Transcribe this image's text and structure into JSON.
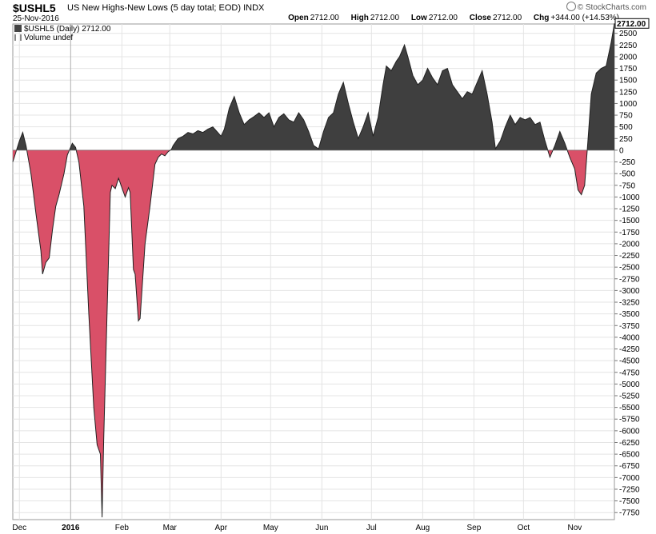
{
  "header": {
    "symbol": "$USHL5",
    "description": "US New Highs-New Lows (5 day total; EOD)",
    "exchange": "INDX",
    "date": "25-Nov-2016",
    "watermark": "© StockCharts.com",
    "open_label": "Open",
    "open_value": "2712.00",
    "high_label": "High",
    "high_value": "2712.00",
    "low_label": "Low",
    "low_value": "2712.00",
    "close_label": "Close",
    "close_value": "2712.00",
    "chg_label": "Chg",
    "chg_value": "+344.00 (+14.53%)"
  },
  "legend": {
    "series_label": "$USHL5 (Daily) 2712.00",
    "volume_label": "Volume undef"
  },
  "colors": {
    "positive_fill": "#3f3f3f",
    "negative_fill": "#d95068",
    "line": "#222222",
    "grid": "#e4e4e4"
  },
  "chart_data": {
    "type": "area",
    "title": "$USHL5 US New Highs-New Lows (5 day total; EOD)",
    "last_value_label": "2712.00",
    "ylim": [
      -7900,
      2700
    ],
    "y_ticks": [
      2500,
      2250,
      2000,
      1750,
      1500,
      1250,
      1000,
      750,
      500,
      250,
      0,
      -250,
      -500,
      -750,
      -1000,
      -1250,
      -1500,
      -1750,
      -2000,
      -2250,
      -2500,
      -2750,
      -3000,
      -3250,
      -3500,
      -3750,
      -4000,
      -4250,
      -4500,
      -4750,
      -5000,
      -5250,
      -5500,
      -5750,
      -6000,
      -6250,
      -6500,
      -6750,
      -7000,
      -7250,
      -7500,
      -7750
    ],
    "x_labels": [
      {
        "label": "Dec",
        "date": "2015-12-01",
        "bold": false
      },
      {
        "label": "2016",
        "date": "2016-01-01",
        "bold": true
      },
      {
        "label": "Feb",
        "date": "2016-02-01",
        "bold": false
      },
      {
        "label": "Mar",
        "date": "2016-03-01",
        "bold": false
      },
      {
        "label": "Apr",
        "date": "2016-04-01",
        "bold": false
      },
      {
        "label": "May",
        "date": "2016-05-01",
        "bold": false
      },
      {
        "label": "Jun",
        "date": "2016-06-01",
        "bold": false
      },
      {
        "label": "Jul",
        "date": "2016-07-01",
        "bold": false
      },
      {
        "label": "Aug",
        "date": "2016-08-01",
        "bold": false
      },
      {
        "label": "Sep",
        "date": "2016-09-01",
        "bold": false
      },
      {
        "label": "Oct",
        "date": "2016-10-01",
        "bold": false
      },
      {
        "label": "Nov",
        "date": "2016-11-01",
        "bold": false
      }
    ],
    "x_range": [
      "2015-11-27",
      "2016-11-25"
    ],
    "series": [
      {
        "points": [
          [
            "2015-11-27",
            -250
          ],
          [
            "2015-12-01",
            200
          ],
          [
            "2015-12-03",
            380
          ],
          [
            "2015-12-05",
            100
          ],
          [
            "2015-12-08",
            -500
          ],
          [
            "2015-12-11",
            -1350
          ],
          [
            "2015-12-14",
            -2150
          ],
          [
            "2015-12-15",
            -2650
          ],
          [
            "2015-12-17",
            -2400
          ],
          [
            "2015-12-19",
            -2300
          ],
          [
            "2015-12-21",
            -1700
          ],
          [
            "2015-12-23",
            -1200
          ],
          [
            "2015-12-25",
            -950
          ],
          [
            "2015-12-28",
            -500
          ],
          [
            "2015-12-30",
            -100
          ],
          [
            "2016-01-02",
            150
          ],
          [
            "2016-01-04",
            60
          ],
          [
            "2016-01-06",
            -250
          ],
          [
            "2016-01-09",
            -1200
          ],
          [
            "2016-01-12",
            -3500
          ],
          [
            "2016-01-15",
            -5500
          ],
          [
            "2016-01-17",
            -6300
          ],
          [
            "2016-01-19",
            -6500
          ],
          [
            "2016-01-20",
            -7850
          ],
          [
            "2016-01-21",
            -6200
          ],
          [
            "2016-01-23",
            -3500
          ],
          [
            "2016-01-25",
            -900
          ],
          [
            "2016-01-26",
            -750
          ],
          [
            "2016-01-28",
            -820
          ],
          [
            "2016-01-30",
            -600
          ],
          [
            "2016-02-02",
            -900
          ],
          [
            "2016-02-03",
            -1000
          ],
          [
            "2016-02-05",
            -800
          ],
          [
            "2016-02-06",
            -900
          ],
          [
            "2016-02-08",
            -2550
          ],
          [
            "2016-02-09",
            -2650
          ],
          [
            "2016-02-11",
            -3650
          ],
          [
            "2016-02-12",
            -3600
          ],
          [
            "2016-02-15",
            -2000
          ],
          [
            "2016-02-18",
            -1200
          ],
          [
            "2016-02-21",
            -300
          ],
          [
            "2016-02-23",
            -150
          ],
          [
            "2016-02-25",
            -80
          ],
          [
            "2016-02-27",
            -120
          ],
          [
            "2016-02-29",
            -30
          ],
          [
            "2016-03-02",
            20
          ],
          [
            "2016-03-03",
            100
          ],
          [
            "2016-03-06",
            250
          ],
          [
            "2016-03-09",
            300
          ],
          [
            "2016-03-12",
            380
          ],
          [
            "2016-03-15",
            350
          ],
          [
            "2016-03-18",
            420
          ],
          [
            "2016-03-21",
            380
          ],
          [
            "2016-03-24",
            450
          ],
          [
            "2016-03-27",
            500
          ],
          [
            "2016-03-30",
            380
          ],
          [
            "2016-04-01",
            300
          ],
          [
            "2016-04-03",
            450
          ],
          [
            "2016-04-06",
            900
          ],
          [
            "2016-04-09",
            1150
          ],
          [
            "2016-04-12",
            800
          ],
          [
            "2016-04-15",
            550
          ],
          [
            "2016-04-18",
            650
          ],
          [
            "2016-04-21",
            720
          ],
          [
            "2016-04-24",
            800
          ],
          [
            "2016-04-27",
            700
          ],
          [
            "2016-04-30",
            800
          ],
          [
            "2016-05-03",
            500
          ],
          [
            "2016-05-06",
            700
          ],
          [
            "2016-05-09",
            780
          ],
          [
            "2016-05-12",
            650
          ],
          [
            "2016-05-15",
            600
          ],
          [
            "2016-05-18",
            800
          ],
          [
            "2016-05-21",
            650
          ],
          [
            "2016-05-24",
            400
          ],
          [
            "2016-05-27",
            100
          ],
          [
            "2016-05-30",
            30
          ],
          [
            "2016-06-02",
            400
          ],
          [
            "2016-06-05",
            700
          ],
          [
            "2016-06-08",
            800
          ],
          [
            "2016-06-11",
            1200
          ],
          [
            "2016-06-14",
            1450
          ],
          [
            "2016-06-17",
            1000
          ],
          [
            "2016-06-20",
            600
          ],
          [
            "2016-06-23",
            250
          ],
          [
            "2016-06-26",
            500
          ],
          [
            "2016-06-29",
            800
          ],
          [
            "2016-07-02",
            300
          ],
          [
            "2016-07-05",
            700
          ],
          [
            "2016-07-08",
            1400
          ],
          [
            "2016-07-10",
            1800
          ],
          [
            "2016-07-13",
            1700
          ],
          [
            "2016-07-16",
            1900
          ],
          [
            "2016-07-18",
            2000
          ],
          [
            "2016-07-21",
            2250
          ],
          [
            "2016-07-23",
            2000
          ],
          [
            "2016-07-26",
            1600
          ],
          [
            "2016-07-29",
            1400
          ],
          [
            "2016-08-01",
            1500
          ],
          [
            "2016-08-04",
            1750
          ],
          [
            "2016-08-07",
            1550
          ],
          [
            "2016-08-10",
            1400
          ],
          [
            "2016-08-13",
            1700
          ],
          [
            "2016-08-16",
            1750
          ],
          [
            "2016-08-19",
            1400
          ],
          [
            "2016-08-22",
            1250
          ],
          [
            "2016-08-25",
            1100
          ],
          [
            "2016-08-28",
            1250
          ],
          [
            "2016-08-31",
            1200
          ],
          [
            "2016-09-03",
            1450
          ],
          [
            "2016-09-06",
            1700
          ],
          [
            "2016-09-09",
            1200
          ],
          [
            "2016-09-12",
            600
          ],
          [
            "2016-09-14",
            30
          ],
          [
            "2016-09-17",
            200
          ],
          [
            "2016-09-20",
            500
          ],
          [
            "2016-09-23",
            750
          ],
          [
            "2016-09-26",
            550
          ],
          [
            "2016-09-29",
            700
          ],
          [
            "2016-10-02",
            650
          ],
          [
            "2016-10-05",
            700
          ],
          [
            "2016-10-08",
            550
          ],
          [
            "2016-10-11",
            600
          ],
          [
            "2016-10-14",
            200
          ],
          [
            "2016-10-17",
            -150
          ],
          [
            "2016-10-20",
            100
          ],
          [
            "2016-10-23",
            400
          ],
          [
            "2016-10-26",
            150
          ],
          [
            "2016-10-29",
            -150
          ],
          [
            "2016-11-01",
            -400
          ],
          [
            "2016-11-03",
            -850
          ],
          [
            "2016-11-05",
            -950
          ],
          [
            "2016-11-07",
            -750
          ],
          [
            "2016-11-09",
            200
          ],
          [
            "2016-11-11",
            1200
          ],
          [
            "2016-11-14",
            1650
          ],
          [
            "2016-11-17",
            1750
          ],
          [
            "2016-11-20",
            1800
          ],
          [
            "2016-11-23",
            2300
          ],
          [
            "2016-11-25",
            2712
          ]
        ]
      }
    ]
  }
}
